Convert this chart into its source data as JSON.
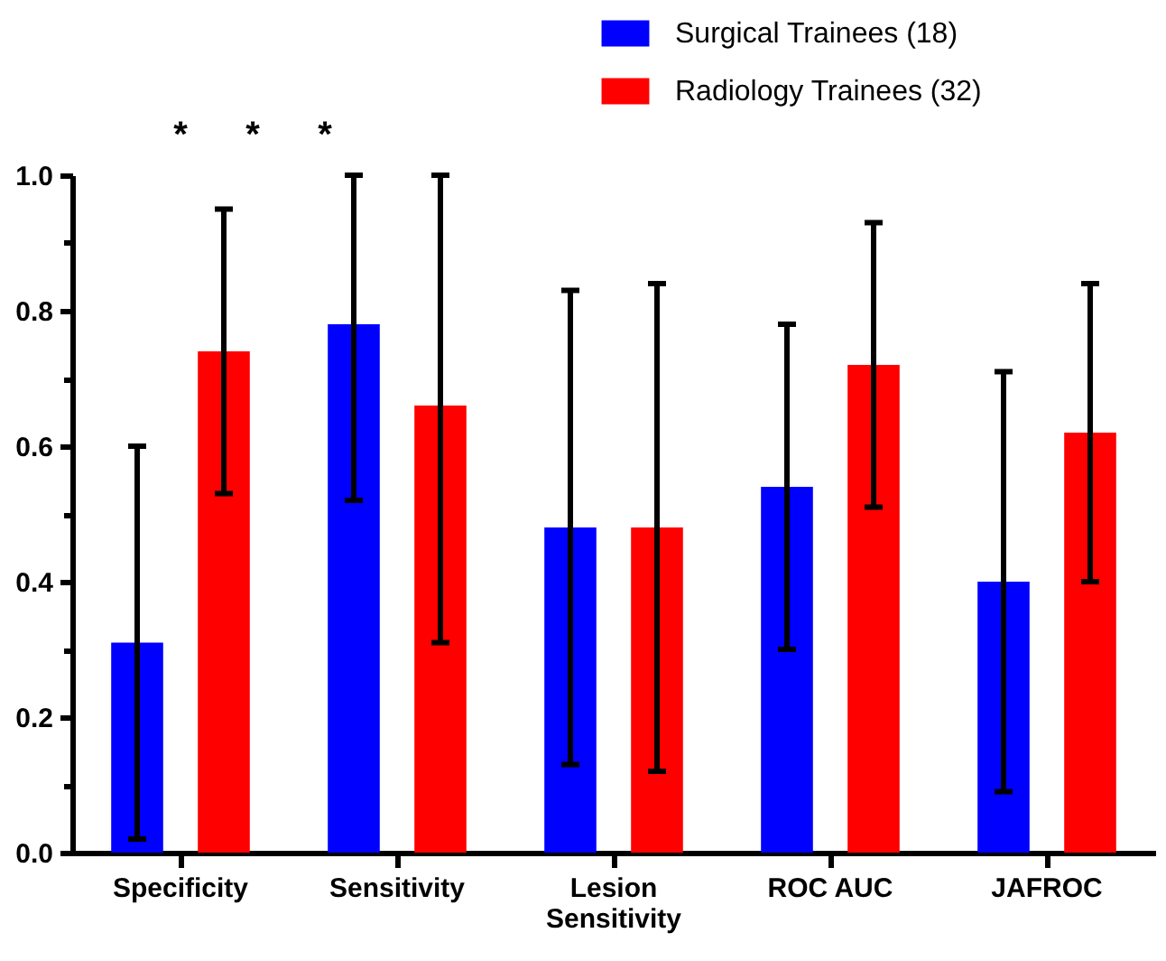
{
  "chart_data": {
    "type": "bar",
    "categories": [
      "Specificity",
      "Sensitivity",
      "Lesion Sensitivity",
      "ROC AUC",
      "JAFROC"
    ],
    "series": [
      {
        "name": "Surgical Trainees (18)",
        "color": "#0000ff",
        "values": [
          0.31,
          0.78,
          0.48,
          0.54,
          0.4
        ],
        "errors": [
          [
            0.02,
            0.6
          ],
          [
            0.52,
            1.0
          ],
          [
            0.13,
            0.83
          ],
          [
            0.3,
            0.78
          ],
          [
            0.09,
            0.71
          ]
        ]
      },
      {
        "name": "Radiology Trainees (32)",
        "color": "#ff0000",
        "values": [
          0.74,
          0.66,
          0.48,
          0.72,
          0.62
        ],
        "errors": [
          [
            0.53,
            0.95
          ],
          [
            0.31,
            1.0
          ],
          [
            0.12,
            0.84
          ],
          [
            0.51,
            0.93
          ],
          [
            0.4,
            0.84
          ]
        ]
      }
    ],
    "ylim": [
      0,
      1.0
    ],
    "yticks": [
      {
        "value": 0,
        "label": "0.0"
      },
      {
        "value": 0.1,
        "label": null
      },
      0.2,
      {
        "value": 0.3,
        "label": null
      },
      0.4,
      {
        "value": 0.5,
        "label": null
      },
      0.6,
      {
        "value": 0.7,
        "label": null
      },
      0.8,
      {
        "value": 0.9,
        "label": null
      },
      {
        "value": 1.0,
        "label": "1.0"
      }
    ],
    "annotations": [
      "*",
      "*",
      "*"
    ],
    "legend": "top right",
    "grid": false
  }
}
